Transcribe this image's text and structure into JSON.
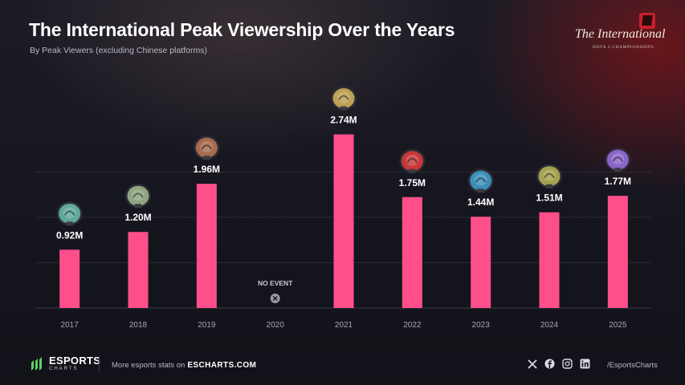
{
  "header": {
    "title": "The International Peak Viewership Over the Years",
    "subtitle": "By Peak Viewers (excluding Chinese platforms)"
  },
  "brand": {
    "logo_icon": "dota2-logo-icon",
    "wordmark_main": "The International",
    "wordmark_sub": "DOTA 2 CHAMPIONSHIPS"
  },
  "chart_data": {
    "type": "bar",
    "categories": [
      "2017",
      "2018",
      "2019",
      "2020",
      "2021",
      "2022",
      "2023",
      "2024",
      "2025"
    ],
    "values": [
      0.92,
      1.2,
      1.96,
      null,
      2.74,
      1.75,
      1.44,
      1.51,
      1.77
    ],
    "value_labels": [
      "0.92M",
      "1.20M",
      "1.96M",
      "",
      "2.74M",
      "1.75M",
      "1.44M",
      "1.51M",
      "1.77M"
    ],
    "no_event_label": "NO EVENT",
    "bar_color": "#ff4f8b",
    "gridlines": true,
    "ylim": [
      0,
      3.3
    ],
    "trophy_icons": [
      "aegis-trophy-icon",
      "aegis-trophy-icon",
      "aegis-trophy-icon",
      "",
      "aegis-trophy-icon",
      "aegis-trophy-icon",
      "aegis-trophy-icon",
      "aegis-trophy-icon",
      "aegis-trophy-icon"
    ],
    "trophy_colors": [
      "#5fa89a",
      "#8fa583",
      "#a86a4c",
      "",
      "#bfa054",
      "#c7373a",
      "#3c8fb8",
      "#a3a24e",
      "#8a65c9"
    ]
  },
  "footer": {
    "brand_line1": "ESPORTS",
    "brand_line2": "CHARTS",
    "more_text": "More esports stats on",
    "more_link": "ESCHARTS.COM",
    "socials": [
      "x-icon",
      "facebook-icon",
      "instagram-icon",
      "linkedin-icon"
    ],
    "handle": "/EsportsCharts",
    "accent": "#5bd36a"
  }
}
